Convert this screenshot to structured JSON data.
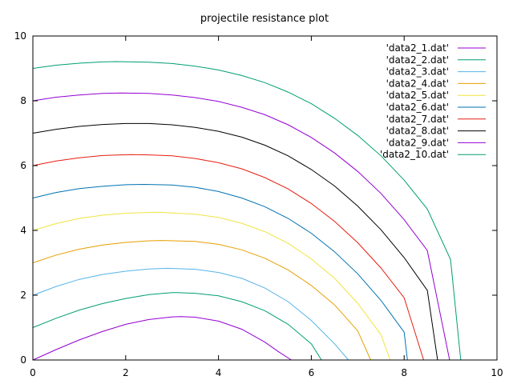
{
  "chart_data": {
    "type": "line",
    "title": "projectile resistance plot",
    "xlabel": "",
    "ylabel": "",
    "xlim": [
      0,
      10
    ],
    "ylim": [
      0,
      10
    ],
    "xticks": [
      0,
      2,
      4,
      6,
      8,
      10
    ],
    "yticks": [
      0,
      2,
      4,
      6,
      8,
      10
    ],
    "grid": false,
    "legend_position": "top-right",
    "series": [
      {
        "name": "'data2_1.dat'",
        "color": "#9400d3",
        "x": [
          0,
          0.5,
          1,
          1.5,
          2,
          2.5,
          3,
          3.2,
          3.5,
          4,
          4.5,
          5,
          5.3,
          5.57
        ],
        "y": [
          0,
          0.32,
          0.62,
          0.88,
          1.1,
          1.25,
          1.33,
          1.34,
          1.32,
          1.2,
          0.95,
          0.55,
          0.25,
          0
        ]
      },
      {
        "name": "'data2_2.dat'",
        "color": "#009e73",
        "x": [
          0,
          0.5,
          1,
          1.5,
          2,
          2.5,
          3,
          3.1,
          3.5,
          4,
          4.5,
          5,
          5.5,
          6,
          6.22
        ],
        "y": [
          1,
          1.29,
          1.54,
          1.74,
          1.9,
          2.02,
          2.08,
          2.08,
          2.06,
          1.98,
          1.8,
          1.52,
          1.1,
          0.5,
          0.0
        ]
      },
      {
        "name": "'data2_3.dat'",
        "color": "#56b4e9",
        "x": [
          0,
          0.5,
          1,
          1.5,
          2,
          2.5,
          2.9,
          3.5,
          4,
          4.5,
          5,
          5.5,
          6,
          6.5,
          6.8
        ],
        "y": [
          2,
          2.27,
          2.49,
          2.64,
          2.74,
          2.81,
          2.83,
          2.8,
          2.7,
          2.52,
          2.22,
          1.8,
          1.22,
          0.5,
          0.0
        ]
      },
      {
        "name": "'data2_4.dat'",
        "color": "#e69f00",
        "x": [
          0,
          0.5,
          1,
          1.5,
          2,
          2.5,
          2.8,
          3.5,
          4,
          4.5,
          5,
          5.5,
          6,
          6.5,
          7,
          7.28
        ],
        "y": [
          3,
          3.24,
          3.42,
          3.55,
          3.63,
          3.68,
          3.69,
          3.66,
          3.57,
          3.4,
          3.14,
          2.78,
          2.3,
          1.7,
          0.9,
          0.0
        ]
      },
      {
        "name": "'data2_5.dat'",
        "color": "#f0e442",
        "x": [
          0,
          0.5,
          1,
          1.5,
          2,
          2.7,
          3.5,
          4,
          4.5,
          5,
          5.5,
          6,
          6.5,
          7,
          7.5,
          7.7
        ],
        "y": [
          4,
          4.21,
          4.37,
          4.47,
          4.53,
          4.56,
          4.5,
          4.4,
          4.22,
          3.96,
          3.6,
          3.12,
          2.52,
          1.75,
          0.78,
          0.0
        ]
      },
      {
        "name": "'data2_6.dat'",
        "color": "#0072b2",
        "x": [
          0,
          0.5,
          1,
          1.5,
          2,
          2.4,
          3,
          3.5,
          4,
          4.5,
          5,
          5.5,
          6,
          6.5,
          7,
          7.5,
          8,
          8.07
        ],
        "y": [
          5,
          5.17,
          5.29,
          5.36,
          5.41,
          5.42,
          5.4,
          5.33,
          5.2,
          5.0,
          4.73,
          4.37,
          3.91,
          3.34,
          2.66,
          1.84,
          0.86,
          0.0
        ]
      },
      {
        "name": "'data2_7.dat'",
        "color": "#e51e10",
        "x": [
          0,
          0.5,
          1,
          1.5,
          2.1,
          2.5,
          3,
          3.5,
          4,
          4.5,
          5,
          5.5,
          6,
          6.5,
          7,
          7.5,
          8,
          8.42
        ],
        "y": [
          6,
          6.14,
          6.24,
          6.31,
          6.34,
          6.33,
          6.3,
          6.22,
          6.09,
          5.9,
          5.63,
          5.28,
          4.83,
          4.28,
          3.62,
          2.84,
          1.92,
          0.0
        ]
      },
      {
        "name": "'data2_8.dat'",
        "color": "#000000",
        "x": [
          0,
          0.5,
          1,
          1.5,
          2,
          2.5,
          3,
          3.5,
          4,
          4.5,
          5,
          5.5,
          6,
          6.5,
          7,
          7.5,
          8,
          8.5,
          8.72
        ],
        "y": [
          7,
          7.12,
          7.21,
          7.27,
          7.3,
          7.3,
          7.26,
          7.18,
          7.06,
          6.88,
          6.63,
          6.3,
          5.88,
          5.37,
          4.75,
          4.02,
          3.16,
          2.15,
          0.0
        ]
      },
      {
        "name": "'data2_9.dat'",
        "color": "#9400d3",
        "x": [
          0,
          0.5,
          1,
          1.5,
          1.9,
          2.5,
          3,
          3.5,
          4,
          4.5,
          5,
          5.5,
          6,
          6.5,
          7,
          7.5,
          8,
          8.5,
          8.98
        ],
        "y": [
          8,
          8.11,
          8.18,
          8.23,
          8.24,
          8.23,
          8.18,
          8.1,
          7.98,
          7.8,
          7.57,
          7.26,
          6.87,
          6.39,
          5.82,
          5.14,
          4.33,
          3.38,
          0.0
        ]
      },
      {
        "name": "'data2_10.dat'",
        "color": "#009e73",
        "x": [
          0,
          0.5,
          1,
          1.5,
          1.8,
          2.5,
          3,
          3.5,
          4,
          4.5,
          5,
          5.5,
          6,
          6.5,
          7,
          7.5,
          8,
          8.5,
          9,
          9.22
        ],
        "y": [
          9,
          9.1,
          9.16,
          9.2,
          9.21,
          9.19,
          9.15,
          9.07,
          8.95,
          8.78,
          8.56,
          8.27,
          7.91,
          7.46,
          6.93,
          6.3,
          5.55,
          4.66,
          3.1,
          0.0
        ]
      }
    ]
  }
}
